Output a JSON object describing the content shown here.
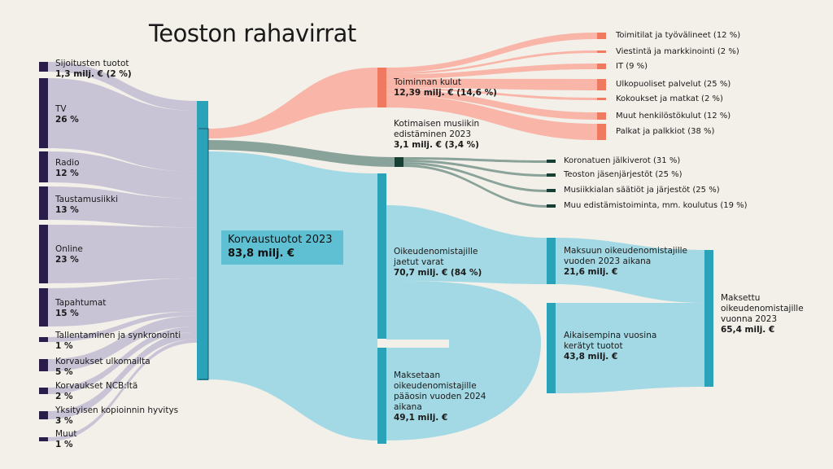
{
  "title": "Teoston rahavirrat",
  "center": {
    "label": "Korvaustuotot 2023",
    "value": "83,8 milj. €"
  },
  "sources": [
    {
      "label": "Sijoitusten tuotot",
      "value": "1,3 milj. € (2 %)"
    },
    {
      "label": "TV",
      "value": "26 %"
    },
    {
      "label": "Radio",
      "value": "12 %"
    },
    {
      "label": "Taustamusiikki",
      "value": "13 %"
    },
    {
      "label": "Online",
      "value": "23 %"
    },
    {
      "label": "Tapahtumat",
      "value": "15 %"
    },
    {
      "label": "Tallentaminen ja synkronointi",
      "value": "1 %"
    },
    {
      "label": "Korvaukset ulkomailta",
      "value": "5 %"
    },
    {
      "label": "Korvaukset NCB:ltä",
      "value": "2 %"
    },
    {
      "label": "Yksityisen kopioinnin hyvitys",
      "value": "3 %"
    },
    {
      "label": "Muut",
      "value": "1 %"
    }
  ],
  "operating": {
    "label": "Toiminnan kulut",
    "value": "12,39 milj. € (14,6 %)"
  },
  "operating_items": [
    "Toimitilat ja työvälineet (12 %)",
    "Viestintä ja markkinointi (2 %)",
    "IT (9 %)",
    "Ulkopuoliset palvelut (25 %)",
    "Kokoukset ja matkat (2 %)",
    "Muut henkilöstökulut (12 %)",
    "Palkat ja palkkiot (38 %)"
  ],
  "promotion": {
    "label": "Kotimaisen musiikin edistäminen 2023",
    "value": "3,1 milj. € (3,4 %)"
  },
  "promotion_items": [
    "Koronatuen jälkiverot (31 %)",
    "Teoston jäsenjärjestöt (25 %)",
    "Musiikkialan säätiöt ja järjestöt (25 %)",
    "Muu edistämistoiminta, mm. koulutus (19 %)"
  ],
  "distributed": {
    "label": "Oikeudenomistajille jaetut varat",
    "value": "70,7 milj. € (84 %)"
  },
  "to_pay": {
    "label": "Maksetaan oikeudenomistajille pääosin vuoden 2024 aikana",
    "value": "49,1 milj. €"
  },
  "paid_2023": {
    "label": "Maksuun oikeudenomistajille vuoden 2023 aikana",
    "value": "21,6 milj. €"
  },
  "earlier": {
    "label": "Aikaisempina vuosina kerätyt tuotot",
    "value": "43,8 milj. €"
  },
  "paid_total": {
    "label": "Maksettu oikeudenomistajille vuonna 2023",
    "value": "65,4 milj. €"
  },
  "colors": {
    "background": "#f3efe9",
    "source_node": "#2b1d4a",
    "source_flow": "#c9c3d6",
    "main_node": "#2aa3b8",
    "main_flow": "#a3d9e4",
    "cost_node": "#f07a60",
    "cost_flow": "#f8b5a8",
    "promo_node": "#173f33",
    "promo_flow": "#8aa39a"
  }
}
